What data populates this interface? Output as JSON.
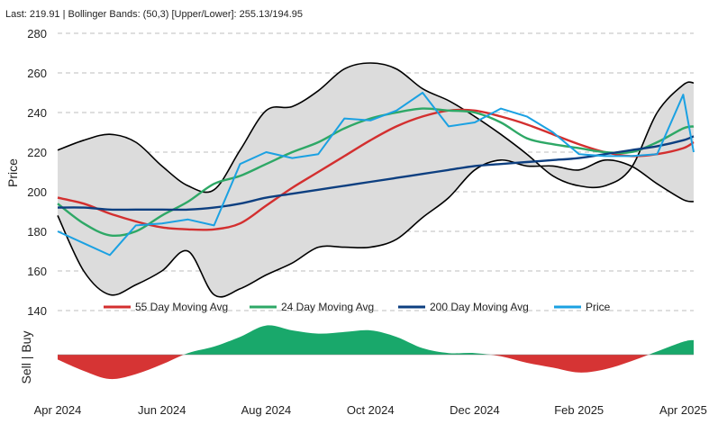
{
  "header": "Last: 219.91 | Bollinger Bands: (50,3) [Upper/Lower]: 255.13/194.95",
  "chart_data": {
    "type": "line",
    "title": "",
    "ylabel": "Price",
    "ylim": [
      140,
      280
    ],
    "yticks": [
      140,
      160,
      180,
      200,
      220,
      240,
      260,
      280
    ],
    "x_tick_labels": [
      "Apr 2024",
      "Jun 2024",
      "Aug 2024",
      "Oct 2024",
      "Dec 2024",
      "Feb 2025",
      "Apr 2025"
    ],
    "x_tick_positions": [
      0,
      2,
      4,
      6,
      8,
      10,
      12
    ],
    "x_range": [
      0,
      12.2
    ],
    "grid": "horizontal dashed",
    "legend_position": "bottom",
    "x": [
      0,
      0.5,
      1,
      1.5,
      2,
      2.5,
      3,
      3.5,
      4,
      4.5,
      5,
      5.5,
      6,
      6.5,
      7,
      7.5,
      8,
      8.5,
      9,
      9.5,
      10,
      10.5,
      11,
      11.5,
      12,
      12.2
    ],
    "series": [
      {
        "name": "Upper Band",
        "color": "#000000",
        "values": [
          221,
          226,
          229,
          225,
          213,
          203,
          201,
          221,
          241,
          243,
          251,
          262,
          265,
          262,
          252,
          246,
          238,
          229,
          219,
          208,
          203,
          203,
          212,
          240,
          254,
          255
        ]
      },
      {
        "name": "Lower Band",
        "color": "#000000",
        "values": [
          188,
          160,
          148,
          153,
          160,
          170,
          148,
          151,
          158,
          164,
          172,
          172,
          172,
          176,
          187,
          197,
          211,
          216,
          213,
          213,
          211,
          216,
          213,
          204,
          196,
          195
        ]
      },
      {
        "name": "55 Day Moving Avg",
        "color": "#d32f2f",
        "values": [
          197,
          194,
          189,
          185,
          182,
          181,
          181,
          184,
          193,
          202,
          210,
          218,
          226,
          233,
          238,
          241,
          241,
          238,
          234,
          229,
          224,
          220,
          218,
          219,
          222,
          225
        ]
      },
      {
        "name": "24 Day Moving Avg",
        "color": "#2ea866",
        "values": [
          194,
          184,
          178,
          180,
          188,
          195,
          204,
          208,
          214,
          220,
          225,
          232,
          237,
          240,
          242,
          241,
          240,
          235,
          227,
          224,
          222,
          220,
          220,
          225,
          232,
          233
        ]
      },
      {
        "name": "200 Day Moving Avg",
        "color": "#0d3f80",
        "values": [
          192,
          192,
          191,
          191,
          191,
          191,
          192,
          194,
          197,
          199,
          201,
          203,
          205,
          207,
          209,
          211,
          213,
          214,
          215,
          216,
          217,
          219,
          221,
          223,
          226,
          228
        ]
      },
      {
        "name": "Price",
        "color": "#1ba1e2",
        "values": [
          180,
          174,
          168,
          183,
          184,
          186,
          183,
          214,
          220,
          217,
          219,
          237,
          236,
          241,
          250,
          233,
          235,
          242,
          238,
          230,
          219,
          218,
          218,
          219,
          249,
          220
        ]
      }
    ],
    "signal": {
      "label": "Sell | Buy",
      "x": [
        0,
        0.5,
        1,
        1.5,
        2,
        2.5,
        3,
        3.5,
        4,
        4.5,
        5,
        5.5,
        6,
        6.5,
        7,
        7.5,
        8,
        8.5,
        9,
        9.5,
        10,
        10.5,
        11,
        11.5,
        12,
        12.2
      ],
      "values": [
        -3,
        -10,
        -15,
        -12,
        -6,
        1,
        5,
        11,
        18,
        15,
        13,
        14,
        15,
        11,
        4,
        1,
        1,
        -1,
        -5,
        -8,
        -11,
        -9,
        -4,
        2,
        8,
        9
      ],
      "buy_color": "#19a86b",
      "sell_color": "#d63434"
    }
  }
}
